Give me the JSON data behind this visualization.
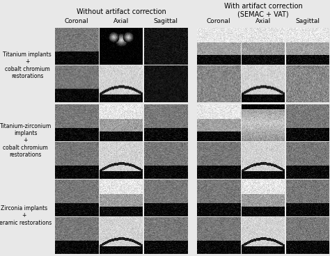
{
  "title_left": "Without artifact correction",
  "title_right": "With artifact correction\n(SEMAC + VAT)",
  "col_labels": [
    "Coronal",
    "Axial",
    "Sagittal"
  ],
  "row_labels": [
    "Titanium implants\n+\ncobalt chromium\nrestorations",
    "Titanium-zirconium\nimplants\n+\ncobalt chromium\nrestorations",
    "Zirconia implants\n+\nceramic restorations"
  ],
  "fig_bg": "#e8e8e8",
  "panel_bg": "#d0d0d0",
  "white_bg": "#f5f5f5",
  "black": "#000000",
  "dark_gray": "#1a1a1a",
  "mid_gray": "#888888",
  "light_gray": "#cccccc"
}
